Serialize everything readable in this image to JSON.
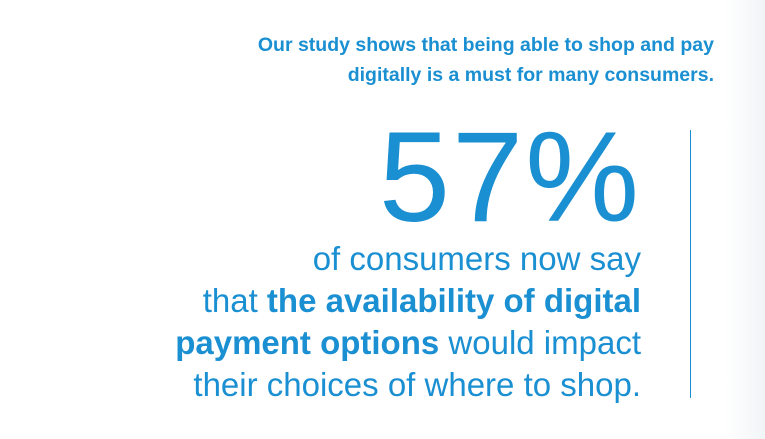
{
  "intro": {
    "line1": "Our study shows that being able to shop and pay",
    "line2": "digitally is a must for many consumers."
  },
  "stat": {
    "value": "57%",
    "line1": "of consumers now say",
    "line2_prefix": "that ",
    "line2_bold": "the availability of digital",
    "line3_bold": "payment options",
    "line3_suffix": " would impact",
    "line4": "their choices of where to shop."
  },
  "colors": {
    "accent": "#1a8fd1",
    "background": "#ffffff"
  }
}
